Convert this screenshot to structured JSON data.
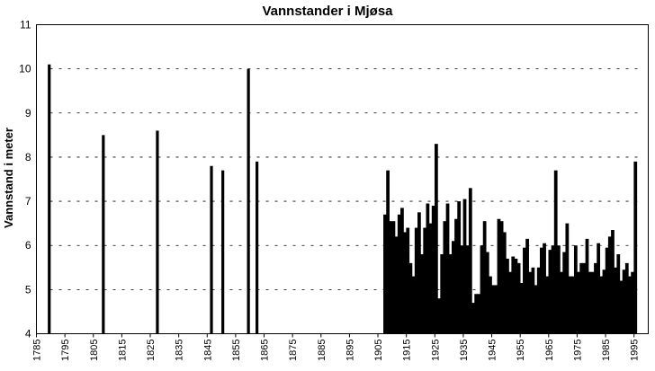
{
  "chart_data": {
    "type": "bar",
    "title": "Vannstander i Mjøsa",
    "xlabel": "",
    "ylabel": "Vannstand i meter",
    "ylim": [
      4,
      11
    ],
    "xlim": [
      1785,
      2000
    ],
    "y_ticks": [
      "4",
      "5",
      "6",
      "7",
      "8",
      "9",
      "10",
      "11"
    ],
    "x_ticks": [
      "1785",
      "1795",
      "1805",
      "1815",
      "1825",
      "1835",
      "1845",
      "1855",
      "1865",
      "1875",
      "1885",
      "1895",
      "1905",
      "1915",
      "1925",
      "1935",
      "1945",
      "1955",
      "1965",
      "1975",
      "1985",
      "1995"
    ],
    "grid": "horizontal dashed",
    "series": [
      {
        "x": [
          1789,
          1808,
          1827,
          1846,
          1850,
          1859,
          1862,
          1907,
          1908,
          1909,
          1910,
          1911,
          1912,
          1913,
          1914,
          1915,
          1916,
          1917,
          1918,
          1919,
          1920,
          1921,
          1922,
          1923,
          1924,
          1925,
          1926,
          1927,
          1928,
          1929,
          1930,
          1931,
          1932,
          1933,
          1934,
          1935,
          1936,
          1937,
          1938,
          1939,
          1940,
          1941,
          1942,
          1943,
          1944,
          1945,
          1946,
          1947,
          1948,
          1949,
          1950,
          1951,
          1952,
          1953,
          1954,
          1955,
          1956,
          1957,
          1958,
          1959,
          1960,
          1961,
          1962,
          1963,
          1964,
          1965,
          1966,
          1967,
          1968,
          1969,
          1970,
          1971,
          1972,
          1973,
          1974,
          1975,
          1976,
          1977,
          1978,
          1979,
          1980,
          1981,
          1982,
          1983,
          1984,
          1985,
          1986,
          1987,
          1988,
          1989,
          1990,
          1991,
          1992,
          1993,
          1994,
          1995
        ],
        "values": [
          10.1,
          8.5,
          8.6,
          7.8,
          7.7,
          10.0,
          7.9,
          6.7,
          7.7,
          6.55,
          6.55,
          6.2,
          6.7,
          6.85,
          6.3,
          6.4,
          5.6,
          5.3,
          6.4,
          6.75,
          5.8,
          6.4,
          6.95,
          6.5,
          6.9,
          8.3,
          4.8,
          5.8,
          6.55,
          6.95,
          5.8,
          6.1,
          6.6,
          7.0,
          6.0,
          7.05,
          6.0,
          7.3,
          4.7,
          4.9,
          4.9,
          6.0,
          6.55,
          5.85,
          5.3,
          5.1,
          5.1,
          6.6,
          6.55,
          6.3,
          5.7,
          5.4,
          5.75,
          5.7,
          5.6,
          5.15,
          5.95,
          6.15,
          5.4,
          5.5,
          5.1,
          5.5,
          5.95,
          6.05,
          5.3,
          5.9,
          6.0,
          7.7,
          6.0,
          5.4,
          5.85,
          6.5,
          5.3,
          5.3,
          6.0,
          5.4,
          5.6,
          5.6,
          6.15,
          5.4,
          5.4,
          5.6,
          6.05,
          5.3,
          5.45,
          5.95,
          6.2,
          6.35,
          5.5,
          5.8,
          5.2,
          5.45,
          5.6,
          5.3,
          5.4,
          7.9
        ]
      }
    ]
  }
}
